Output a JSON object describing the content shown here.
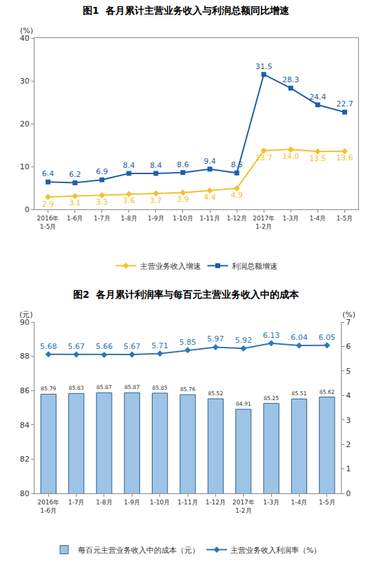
{
  "chart_data": [
    {
      "type": "line",
      "title": "图1  各月累计主营业务收入与利润总额同比增速",
      "ylabel": "(%)",
      "categories": [
        "2016年\n1-5月",
        "1-6月",
        "1-7月",
        "1-8月",
        "1-9月",
        "1-10月",
        "1-11月",
        "1-12月",
        "2017年\n1-2月",
        "1-3月",
        "1-4月",
        "1-5月"
      ],
      "series": [
        {
          "name": "主营业务收入增速",
          "color": "#f5c02e",
          "marker": "diamond",
          "values": [
            2.9,
            3.1,
            3.3,
            3.6,
            3.7,
            3.9,
            4.4,
            4.9,
            13.7,
            14.0,
            13.5,
            13.6
          ],
          "value_labels": [
            "2.9",
            "3.1",
            "3.3",
            "3.6",
            "3.7",
            "3.9",
            "4.4",
            "4.9",
            "13.7",
            "14.0",
            "13.5",
            "13.6"
          ]
        },
        {
          "name": "利润总额增速",
          "color": "#1f5fa8",
          "marker": "square",
          "values": [
            6.4,
            6.2,
            6.9,
            8.4,
            8.4,
            8.6,
            9.4,
            8.5,
            31.5,
            28.3,
            24.4,
            22.7
          ]
        }
      ],
      "ylim": [
        0,
        40
      ],
      "yticks": [
        0,
        10,
        20,
        30,
        40
      ],
      "grid": false,
      "legend": "bottom",
      "data_labels": true
    },
    {
      "type": "combo",
      "title": "图2  各月累计利润率与每百元主营业务收入中的成本",
      "ylabel": "(元)",
      "y2label": "(%)",
      "categories": [
        "2016年\n1-6月",
        "1-7月",
        "1-8月",
        "1-9月",
        "1-10月",
        "1-11月",
        "1-12月",
        "2017年\n1-2月",
        "1-3月",
        "1-4月",
        "1-5月"
      ],
      "series": [
        {
          "name": "每百元主营业务收入中的成本（元）",
          "type": "bar",
          "color": "#9dc3e6",
          "values": [
            85.79,
            85.83,
            85.87,
            85.87,
            85.85,
            85.76,
            85.52,
            84.91,
            85.25,
            85.51,
            85.62
          ]
        },
        {
          "name": "主营业务收入利润率（%）",
          "type": "line",
          "color": "#2e75b6",
          "marker": "diamond",
          "axis": "y2",
          "values": [
            5.68,
            5.67,
            5.66,
            5.67,
            5.71,
            5.85,
            5.97,
            5.92,
            6.13,
            6.04,
            6.05
          ]
        }
      ],
      "ylim": [
        80,
        90
      ],
      "yticks": [
        80,
        82,
        84,
        86,
        88,
        90
      ],
      "y2lim": [
        0,
        7
      ],
      "y2ticks": [
        0,
        1,
        2,
        3,
        4,
        5,
        6,
        7
      ],
      "grid": false,
      "legend": "bottom",
      "data_labels": true
    }
  ]
}
